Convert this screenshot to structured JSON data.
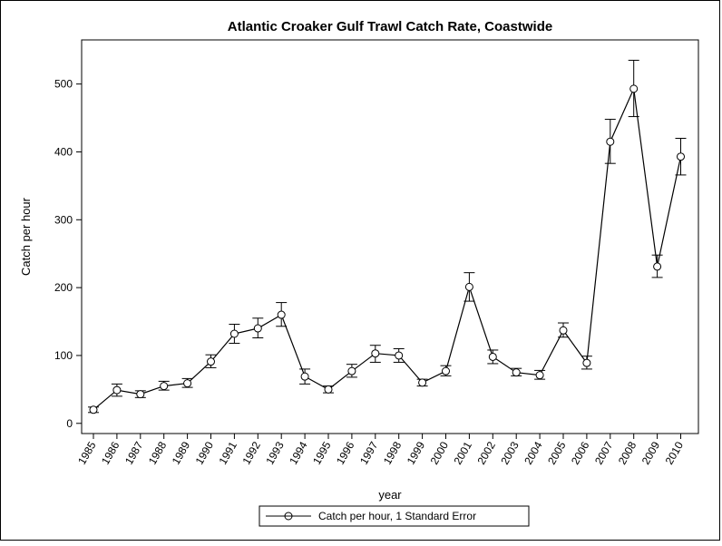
{
  "chart_data": {
    "type": "line",
    "title": "Atlantic Croaker Gulf Trawl Catch Rate, Coastwide",
    "xlabel": "year",
    "ylabel": "Catch per hour",
    "ylim": [
      -15,
      565
    ],
    "yticks": [
      0,
      100,
      200,
      300,
      400,
      500
    ],
    "legend": {
      "label": "Catch per hour, 1 Standard Error",
      "position": "bottom-center"
    },
    "grid": false,
    "series": [
      {
        "name": "Catch per hour, 1 Standard Error",
        "points": [
          {
            "x": "1985",
            "y": 20,
            "lo": 16,
            "hi": 24
          },
          {
            "x": "1986",
            "y": 49,
            "lo": 40,
            "hi": 58
          },
          {
            "x": "1987",
            "y": 43,
            "lo": 38,
            "hi": 48
          },
          {
            "x": "1988",
            "y": 55,
            "lo": 49,
            "hi": 62
          },
          {
            "x": "1989",
            "y": 59,
            "lo": 53,
            "hi": 66
          },
          {
            "x": "1990",
            "y": 91,
            "lo": 82,
            "hi": 101
          },
          {
            "x": "1991",
            "y": 132,
            "lo": 118,
            "hi": 146
          },
          {
            "x": "1992",
            "y": 140,
            "lo": 126,
            "hi": 155
          },
          {
            "x": "1993",
            "y": 160,
            "lo": 143,
            "hi": 178
          },
          {
            "x": "1994",
            "y": 69,
            "lo": 58,
            "hi": 80
          },
          {
            "x": "1995",
            "y": 50,
            "lo": 45,
            "hi": 55
          },
          {
            "x": "1996",
            "y": 77,
            "lo": 68,
            "hi": 87
          },
          {
            "x": "1997",
            "y": 103,
            "lo": 90,
            "hi": 115
          },
          {
            "x": "1998",
            "y": 100,
            "lo": 90,
            "hi": 110
          },
          {
            "x": "1999",
            "y": 60,
            "lo": 55,
            "hi": 65
          },
          {
            "x": "2000",
            "y": 77,
            "lo": 70,
            "hi": 85
          },
          {
            "x": "2001",
            "y": 201,
            "lo": 180,
            "hi": 222
          },
          {
            "x": "2002",
            "y": 98,
            "lo": 88,
            "hi": 108
          },
          {
            "x": "2003",
            "y": 75,
            "lo": 70,
            "hi": 81
          },
          {
            "x": "2004",
            "y": 71,
            "lo": 65,
            "hi": 78
          },
          {
            "x": "2005",
            "y": 137,
            "lo": 127,
            "hi": 148
          },
          {
            "x": "2006",
            "y": 89,
            "lo": 80,
            "hi": 99
          },
          {
            "x": "2007",
            "y": 415,
            "lo": 383,
            "hi": 448
          },
          {
            "x": "2008",
            "y": 493,
            "lo": 452,
            "hi": 535
          },
          {
            "x": "2009",
            "y": 231,
            "lo": 215,
            "hi": 248
          },
          {
            "x": "2010",
            "y": 393,
            "lo": 366,
            "hi": 420
          }
        ]
      }
    ]
  }
}
